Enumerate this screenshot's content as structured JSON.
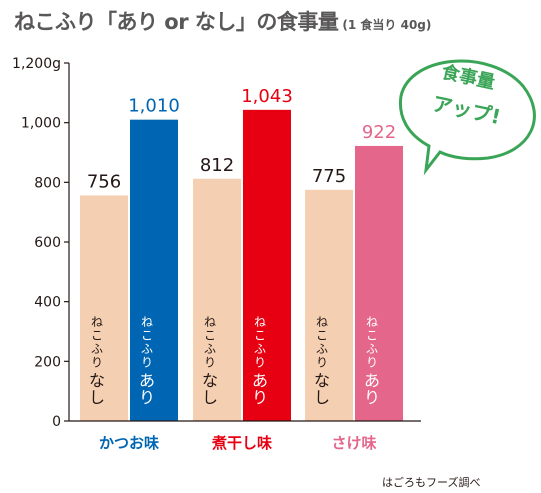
{
  "title": "ねこふり「あり or なし」の食事量",
  "subtitle": "(1 食当り 40g)",
  "source": "はごろもフーズ調べ",
  "callout": {
    "lines": [
      "食事量",
      "アップ!"
    ],
    "color": "#3aa557"
  },
  "chart_data": {
    "type": "bar",
    "title": "ねこふり「あり or なし」の食事量",
    "subtitle": "(1 食当り 40g)",
    "categories": [
      "かつお味",
      "煮干し味",
      "さけ味"
    ],
    "category_colors": [
      "#0066b3",
      "#e60012",
      "#e4668a"
    ],
    "ylim": [
      0,
      1200
    ],
    "yticks": [
      0,
      200,
      400,
      600,
      800,
      1000,
      1200
    ],
    "ytick_labels": [
      "0",
      "200",
      "400",
      "600",
      "800",
      "1,000",
      "1,200g"
    ],
    "grid": false,
    "series": [
      {
        "name": "ねこふり なし",
        "values": [
          756,
          812,
          775
        ],
        "value_labels": [
          "756",
          "812",
          "775"
        ],
        "color": "#f5cfb1",
        "label_colors": [
          "#231815",
          "#231815",
          "#231815"
        ]
      },
      {
        "name": "ねこふり あり",
        "values": [
          1010,
          1043,
          922
        ],
        "value_labels": [
          "1,010",
          "1,043",
          "922"
        ],
        "colors": [
          "#0066b3",
          "#e60012",
          "#e4668a"
        ],
        "label_colors": [
          "#0066b3",
          "#e60012",
          "#e4668a"
        ]
      }
    ],
    "bar_inner_labels": {
      "なし": [
        "ねこふり",
        "なし"
      ],
      "あり": [
        "ねこふり",
        "あり"
      ]
    }
  }
}
